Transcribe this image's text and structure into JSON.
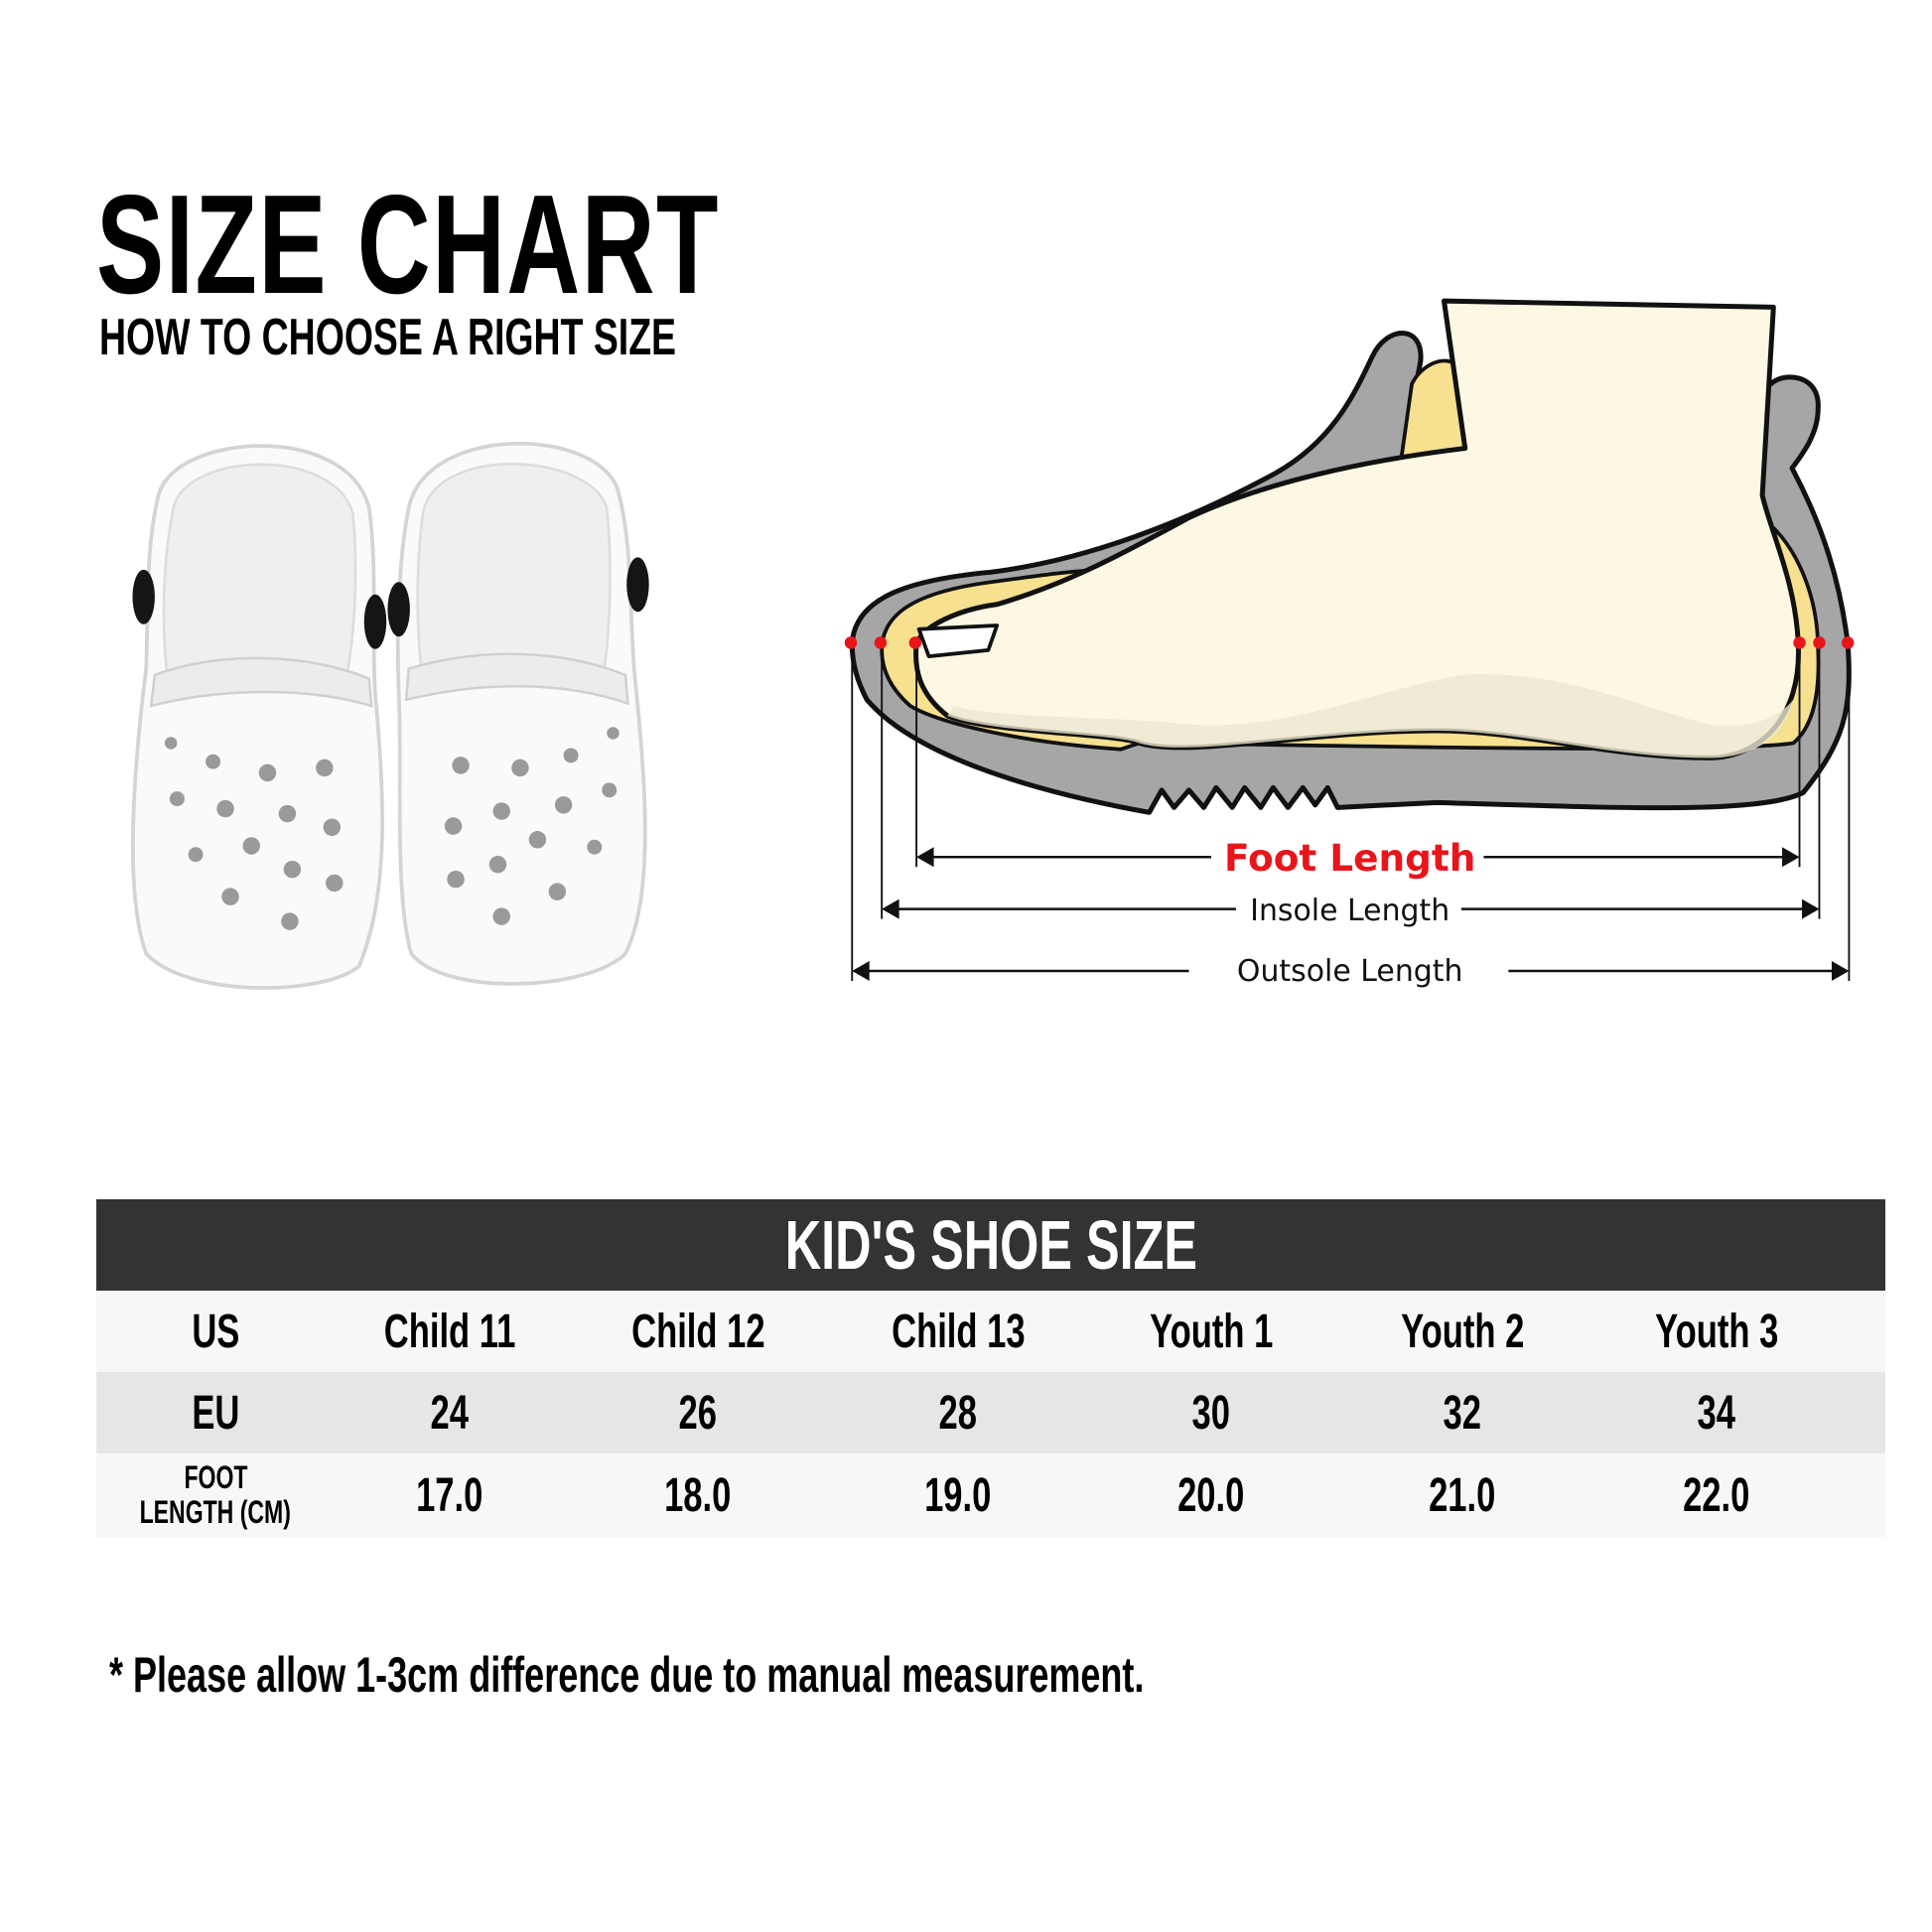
{
  "header": {
    "title": "SIZE CHART",
    "subtitle": "HOW TO CHOOSE A RIGHT SIZE"
  },
  "diagram": {
    "foot_length_label": "Foot Length",
    "insole_length_label": "Insole Length",
    "outsole_length_label": "Outsole Length",
    "colors": {
      "foot_length": "#e8151b",
      "shoe": "#a6a6a6",
      "insole": "#f7e08f",
      "foot": "#fdf8e4",
      "marker": "#e8151b"
    }
  },
  "table": {
    "title": "KID'S SHOE SIZE",
    "header_color": "#333333",
    "rows": [
      {
        "label": "US",
        "values": [
          "Child 11",
          "Child 12",
          "Child 13",
          "Youth 1",
          "Youth 2",
          "Youth 3"
        ]
      },
      {
        "label": "EU",
        "values": [
          "24",
          "26",
          "28",
          "30",
          "32",
          "34"
        ]
      },
      {
        "label_line1": "FOOT",
        "label_line2": "LENGTH (CM)",
        "values": [
          "17.0",
          "18.0",
          "19.0",
          "20.0",
          "21.0",
          "22.0"
        ]
      }
    ]
  },
  "note": "* Please allow 1-3cm difference due to manual measurement."
}
